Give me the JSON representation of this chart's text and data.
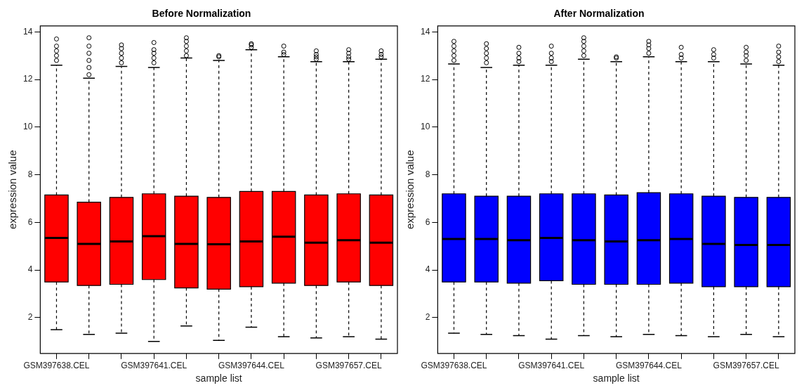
{
  "chart_data": [
    {
      "type": "box",
      "title": "Before Normalization",
      "xlabel": "sample list",
      "ylabel": "expression value",
      "categories": [
        "GSM397638.CEL",
        null,
        null,
        "GSM397641.CEL",
        null,
        null,
        "GSM397644.CEL",
        null,
        null,
        "GSM397657.CEL",
        null
      ],
      "ylim": [
        0.5,
        14.25
      ],
      "yticks": [
        2,
        4,
        6,
        8,
        10,
        12,
        14
      ],
      "series": [
        {
          "color": "#ff0000",
          "boxes": [
            {
              "low": 1.5,
              "q1": 3.5,
              "median": 5.35,
              "q3": 7.15,
              "high": 12.6,
              "outliers": [
                12.8,
                13.0,
                13.2,
                13.4,
                13.7
              ]
            },
            {
              "low": 1.3,
              "q1": 3.35,
              "median": 5.1,
              "q3": 6.85,
              "high": 12.05,
              "outliers": [
                12.2,
                12.5,
                12.8,
                13.1,
                13.4,
                13.75
              ]
            },
            {
              "low": 1.35,
              "q1": 3.4,
              "median": 5.2,
              "q3": 7.05,
              "high": 12.55,
              "outliers": [
                12.7,
                12.9,
                13.1,
                13.3,
                13.45
              ]
            },
            {
              "low": 1.0,
              "q1": 3.6,
              "median": 5.42,
              "q3": 7.2,
              "high": 12.5,
              "outliers": [
                12.7,
                12.9,
                13.1,
                13.25,
                13.55
              ]
            },
            {
              "low": 1.65,
              "q1": 3.25,
              "median": 5.1,
              "q3": 7.1,
              "high": 12.9,
              "outliers": [
                13.0,
                13.2,
                13.4,
                13.6,
                13.75
              ]
            },
            {
              "low": 1.05,
              "q1": 3.2,
              "median": 5.08,
              "q3": 7.05,
              "high": 12.8,
              "outliers": [
                12.95,
                13.0
              ]
            },
            {
              "low": 1.6,
              "q1": 3.3,
              "median": 5.2,
              "q3": 7.3,
              "high": 13.25,
              "outliers": [
                13.35,
                13.45,
                13.5
              ]
            },
            {
              "low": 1.2,
              "q1": 3.45,
              "median": 5.4,
              "q3": 7.3,
              "high": 12.95,
              "outliers": [
                13.05,
                13.15,
                13.4
              ]
            },
            {
              "low": 1.15,
              "q1": 3.35,
              "median": 5.15,
              "q3": 7.15,
              "high": 12.75,
              "outliers": [
                12.85,
                12.95,
                13.05,
                13.2
              ]
            },
            {
              "low": 1.2,
              "q1": 3.5,
              "median": 5.25,
              "q3": 7.2,
              "high": 12.75,
              "outliers": [
                12.85,
                12.95,
                13.1,
                13.25
              ]
            },
            {
              "low": 1.1,
              "q1": 3.35,
              "median": 5.15,
              "q3": 7.15,
              "high": 12.85,
              "outliers": [
                12.95,
                13.05,
                13.2
              ]
            }
          ]
        }
      ]
    },
    {
      "type": "box",
      "title": "After Normalization",
      "xlabel": "sample list",
      "ylabel": "expression value",
      "categories": [
        "GSM397638.CEL",
        null,
        null,
        "GSM397641.CEL",
        null,
        null,
        "GSM397644.CEL",
        null,
        null,
        "GSM397657.CEL",
        null
      ],
      "ylim": [
        0.5,
        14.25
      ],
      "yticks": [
        2,
        4,
        6,
        8,
        10,
        12,
        14
      ],
      "series": [
        {
          "color": "#0000ff",
          "boxes": [
            {
              "low": 1.35,
              "q1": 3.5,
              "median": 5.3,
              "q3": 7.2,
              "high": 12.65,
              "outliers": [
                12.8,
                13.0,
                13.2,
                13.4,
                13.6
              ]
            },
            {
              "low": 1.3,
              "q1": 3.5,
              "median": 5.3,
              "q3": 7.1,
              "high": 12.5,
              "outliers": [
                12.7,
                12.9,
                13.1,
                13.3,
                13.5
              ]
            },
            {
              "low": 1.25,
              "q1": 3.45,
              "median": 5.25,
              "q3": 7.1,
              "high": 12.6,
              "outliers": [
                12.75,
                12.9,
                13.1,
                13.35
              ]
            },
            {
              "low": 1.1,
              "q1": 3.55,
              "median": 5.35,
              "q3": 7.2,
              "high": 12.6,
              "outliers": [
                12.75,
                12.9,
                13.1,
                13.4
              ]
            },
            {
              "low": 1.25,
              "q1": 3.4,
              "median": 5.25,
              "q3": 7.2,
              "high": 12.85,
              "outliers": [
                13.0,
                13.2,
                13.4,
                13.6,
                13.75
              ]
            },
            {
              "low": 1.2,
              "q1": 3.4,
              "median": 5.2,
              "q3": 7.15,
              "high": 12.75,
              "outliers": [
                12.9,
                12.95
              ]
            },
            {
              "low": 1.3,
              "q1": 3.4,
              "median": 5.25,
              "q3": 7.25,
              "high": 12.95,
              "outliers": [
                13.1,
                13.3,
                13.45,
                13.6
              ]
            },
            {
              "low": 1.25,
              "q1": 3.45,
              "median": 5.3,
              "q3": 7.2,
              "high": 12.75,
              "outliers": [
                12.9,
                13.05,
                13.35
              ]
            },
            {
              "low": 1.2,
              "q1": 3.3,
              "median": 5.1,
              "q3": 7.1,
              "high": 12.75,
              "outliers": [
                12.9,
                13.05,
                13.25
              ]
            },
            {
              "low": 1.3,
              "q1": 3.3,
              "median": 5.05,
              "q3": 7.05,
              "high": 12.65,
              "outliers": [
                12.8,
                13.0,
                13.15,
                13.35
              ]
            },
            {
              "low": 1.2,
              "q1": 3.3,
              "median": 5.05,
              "q3": 7.05,
              "high": 12.6,
              "outliers": [
                12.75,
                12.95,
                13.15,
                13.4
              ]
            }
          ]
        }
      ]
    }
  ]
}
